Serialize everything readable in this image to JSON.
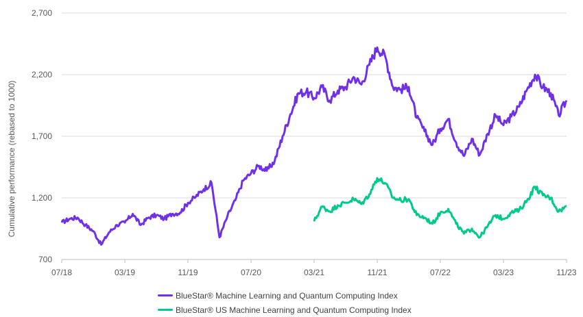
{
  "chart_data": {
    "type": "line",
    "title": "",
    "xlabel": "",
    "ylabel": "Cumulative performance (rebased to 1000)",
    "ylim": [
      700,
      2700
    ],
    "yticks": [
      {
        "value": 700,
        "label": "700"
      },
      {
        "value": 1200,
        "label": "1,200"
      },
      {
        "value": 1700,
        "label": "1,700"
      },
      {
        "value": 2200,
        "label": "2,200"
      },
      {
        "value": 2700,
        "label": "2,700"
      }
    ],
    "xlim": [
      "2018-07",
      "2023-11"
    ],
    "xticks": [
      "07/18",
      "03/19",
      "11/19",
      "07/20",
      "03/21",
      "11/21",
      "07/22",
      "03/23",
      "11/23"
    ],
    "grid": "horizontal",
    "legend_position": "bottom",
    "series": [
      {
        "name": "BlueStar® Machine Learning and Quantum Computing Index",
        "color": "#7030E8",
        "points": [
          [
            "2018-07",
            1000
          ],
          [
            "2018-08",
            1030
          ],
          [
            "2018-09",
            1040
          ],
          [
            "2018-10",
            980
          ],
          [
            "2018-11",
            930
          ],
          [
            "2018-12",
            820
          ],
          [
            "2019-01",
            920
          ],
          [
            "2019-02",
            980
          ],
          [
            "2019-03",
            1000
          ],
          [
            "2019-04",
            1070
          ],
          [
            "2019-05",
            980
          ],
          [
            "2019-06",
            1040
          ],
          [
            "2019-07",
            1060
          ],
          [
            "2019-08",
            1030
          ],
          [
            "2019-09",
            1070
          ],
          [
            "2019-10",
            1080
          ],
          [
            "2019-11",
            1160
          ],
          [
            "2019-12",
            1210
          ],
          [
            "2020-01",
            1270
          ],
          [
            "2020-02",
            1320
          ],
          [
            "2020-03",
            880
          ],
          [
            "2020-04",
            1050
          ],
          [
            "2020-05",
            1180
          ],
          [
            "2020-06",
            1340
          ],
          [
            "2020-07",
            1400
          ],
          [
            "2020-08",
            1460
          ],
          [
            "2020-09",
            1420
          ],
          [
            "2020-10",
            1500
          ],
          [
            "2020-11",
            1700
          ],
          [
            "2020-12",
            1880
          ],
          [
            "2021-01",
            2050
          ],
          [
            "2021-02",
            2060
          ],
          [
            "2021-03",
            2010
          ],
          [
            "2021-04",
            2100
          ],
          [
            "2021-05",
            1990
          ],
          [
            "2021-06",
            2070
          ],
          [
            "2021-07",
            2100
          ],
          [
            "2021-08",
            2180
          ],
          [
            "2021-09",
            2120
          ],
          [
            "2021-10",
            2280
          ],
          [
            "2021-11",
            2420
          ],
          [
            "2021-12",
            2350
          ],
          [
            "2022-01",
            2100
          ],
          [
            "2022-02",
            2080
          ],
          [
            "2022-03",
            2100
          ],
          [
            "2022-04",
            1850
          ],
          [
            "2022-05",
            1740
          ],
          [
            "2022-06",
            1630
          ],
          [
            "2022-07",
            1760
          ],
          [
            "2022-08",
            1840
          ],
          [
            "2022-09",
            1650
          ],
          [
            "2022-10",
            1540
          ],
          [
            "2022-11",
            1680
          ],
          [
            "2022-12",
            1550
          ],
          [
            "2023-01",
            1720
          ],
          [
            "2023-02",
            1870
          ],
          [
            "2023-03",
            1790
          ],
          [
            "2023-04",
            1860
          ],
          [
            "2023-05",
            1940
          ],
          [
            "2023-06",
            2080
          ],
          [
            "2023-07",
            2200
          ],
          [
            "2023-08",
            2100
          ],
          [
            "2023-09",
            2050
          ],
          [
            "2023-10",
            1870
          ],
          [
            "2023-11",
            1990
          ]
        ]
      },
      {
        "name": "BlueStar® US Machine Learning and Quantum Computing Index",
        "color": "#00C98D",
        "points": [
          [
            "2021-03",
            1010
          ],
          [
            "2021-04",
            1130
          ],
          [
            "2021-05",
            1090
          ],
          [
            "2021-06",
            1140
          ],
          [
            "2021-07",
            1160
          ],
          [
            "2021-08",
            1190
          ],
          [
            "2021-09",
            1150
          ],
          [
            "2021-10",
            1230
          ],
          [
            "2021-11",
            1360
          ],
          [
            "2021-12",
            1320
          ],
          [
            "2022-01",
            1200
          ],
          [
            "2022-02",
            1180
          ],
          [
            "2022-03",
            1190
          ],
          [
            "2022-04",
            1060
          ],
          [
            "2022-05",
            1040
          ],
          [
            "2022-06",
            990
          ],
          [
            "2022-07",
            1080
          ],
          [
            "2022-08",
            1110
          ],
          [
            "2022-09",
            990
          ],
          [
            "2022-10",
            910
          ],
          [
            "2022-11",
            950
          ],
          [
            "2022-12",
            880
          ],
          [
            "2023-01",
            970
          ],
          [
            "2023-02",
            1060
          ],
          [
            "2023-03",
            1030
          ],
          [
            "2023-04",
            1080
          ],
          [
            "2023-05",
            1100
          ],
          [
            "2023-06",
            1180
          ],
          [
            "2023-07",
            1290
          ],
          [
            "2023-08",
            1220
          ],
          [
            "2023-09",
            1200
          ],
          [
            "2023-10",
            1090
          ],
          [
            "2023-11",
            1130
          ]
        ]
      }
    ]
  }
}
